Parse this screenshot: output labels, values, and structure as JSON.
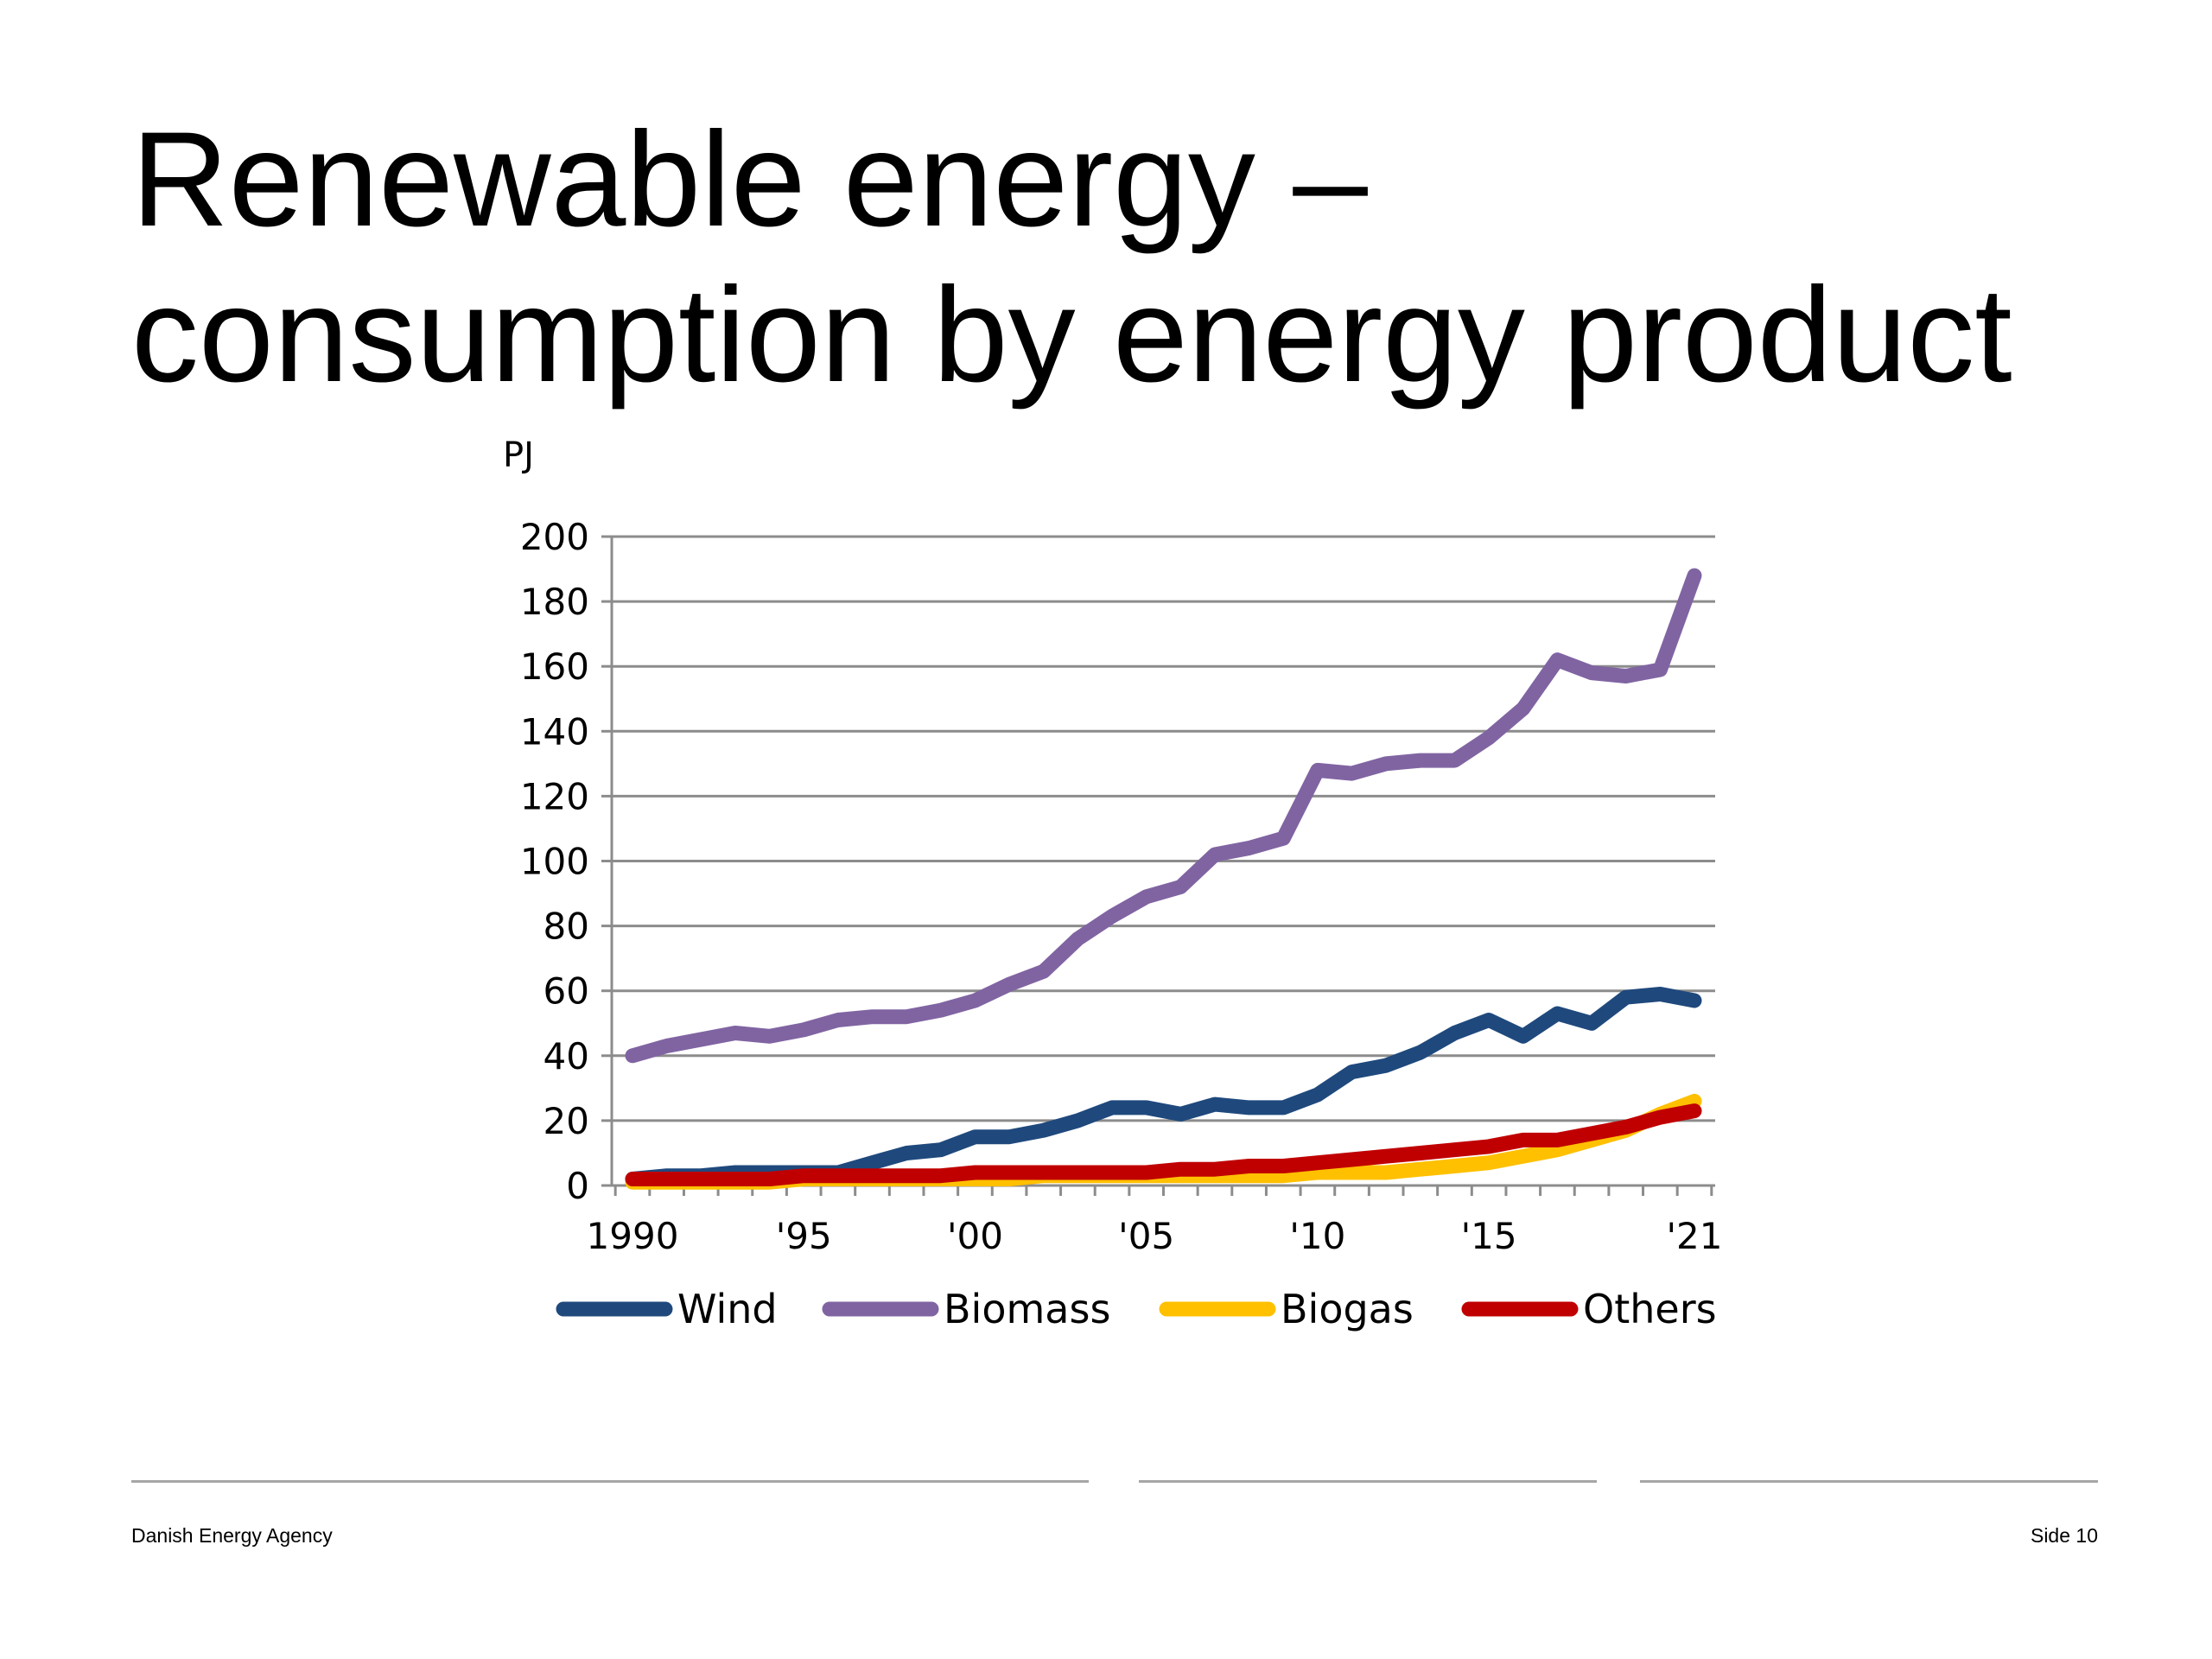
{
  "slide": {
    "title_line1": "Renewable energy –",
    "title_line2": "consumption by energy product"
  },
  "footer": {
    "organization": "Danish Energy Agency",
    "page_label": "Side 10"
  },
  "chart_data": {
    "type": "line",
    "title": "",
    "ylabel": "PJ",
    "xlabel": "",
    "ylim": [
      0,
      200
    ],
    "yticks": [
      0,
      20,
      40,
      60,
      80,
      100,
      120,
      140,
      160,
      180,
      200
    ],
    "xlim": [
      1990,
      2021
    ],
    "x_tick_values": [
      1990,
      1995,
      2000,
      2005,
      2010,
      2015,
      2021
    ],
    "x_tick_labels": [
      "1990",
      "'95",
      "'00",
      "'05",
      "'10",
      "'15",
      "'21"
    ],
    "grid": true,
    "legend_position": "bottom",
    "x": [
      1990,
      1991,
      1992,
      1993,
      1994,
      1995,
      1996,
      1997,
      1998,
      1999,
      2000,
      2001,
      2002,
      2003,
      2004,
      2005,
      2006,
      2007,
      2008,
      2009,
      2010,
      2011,
      2012,
      2013,
      2014,
      2015,
      2016,
      2017,
      2018,
      2019,
      2020,
      2021
    ],
    "series": [
      {
        "name": "Wind",
        "color": "#1f497d",
        "values": [
          2,
          3,
          3,
          4,
          4,
          4,
          4,
          7,
          10,
          11,
          15,
          15,
          17,
          20,
          24,
          24,
          22,
          25,
          24,
          24,
          28,
          35,
          37,
          41,
          47,
          51,
          46,
          53,
          50,
          58,
          59,
          57
        ]
      },
      {
        "name": "Biomass",
        "color": "#8064a2",
        "values": [
          40,
          43,
          45,
          47,
          46,
          48,
          51,
          52,
          52,
          54,
          57,
          62,
          66,
          76,
          83,
          89,
          92,
          102,
          104,
          107,
          128,
          127,
          130,
          131,
          131,
          138,
          147,
          162,
          158,
          157,
          159,
          188
        ]
      },
      {
        "name": "Biogas",
        "color": "#ffc000",
        "values": [
          1,
          1,
          1,
          1,
          1,
          2,
          2,
          2,
          2,
          2,
          2,
          2,
          3,
          3,
          3,
          3,
          3,
          3,
          3,
          3,
          4,
          4,
          4,
          5,
          6,
          7,
          9,
          11,
          14,
          17,
          22,
          26
        ]
      },
      {
        "name": "Others",
        "color": "#c00000",
        "values": [
          2,
          2,
          2,
          2,
          2,
          3,
          3,
          3,
          3,
          3,
          4,
          4,
          4,
          4,
          4,
          4,
          5,
          5,
          6,
          6,
          7,
          8,
          9,
          10,
          11,
          12,
          14,
          14,
          16,
          18,
          21,
          23
        ]
      }
    ]
  }
}
